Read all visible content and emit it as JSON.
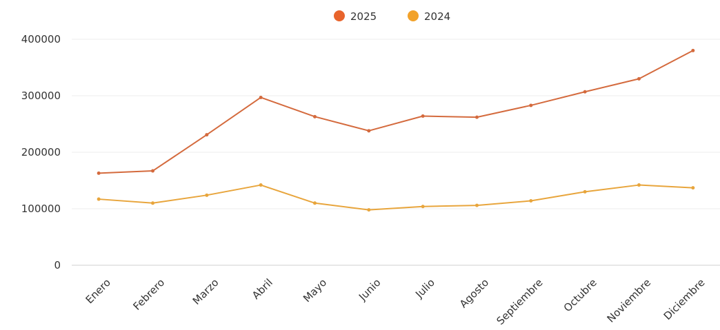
{
  "chart_data": {
    "type": "line",
    "categories": [
      "Enero",
      "Febrero",
      "Marzo",
      "Abril",
      "Mayo",
      "Junio",
      "Julio",
      "Agosto",
      "Septiembre",
      "Octubre",
      "Noviembre",
      "Diciembre"
    ],
    "series": [
      {
        "name": "2025",
        "color": "#e8642c",
        "line_color": "#d46a3d",
        "values": [
          163000,
          167000,
          231000,
          297000,
          263000,
          238000,
          264000,
          262000,
          283000,
          307000,
          330000,
          380000
        ]
      },
      {
        "name": "2024",
        "color": "#f2a22a",
        "line_color": "#e8a53c",
        "values": [
          117000,
          110000,
          124000,
          142000,
          110000,
          98000,
          104000,
          106000,
          114000,
          130000,
          142000,
          137000
        ]
      }
    ],
    "ylim": [
      0,
      400000
    ],
    "yticks": [
      0,
      100000,
      200000,
      300000,
      400000
    ],
    "ytick_labels": [
      "0",
      "100000",
      "200000",
      "300000",
      "400000"
    ],
    "grid": true,
    "legend_position": "top-center"
  }
}
